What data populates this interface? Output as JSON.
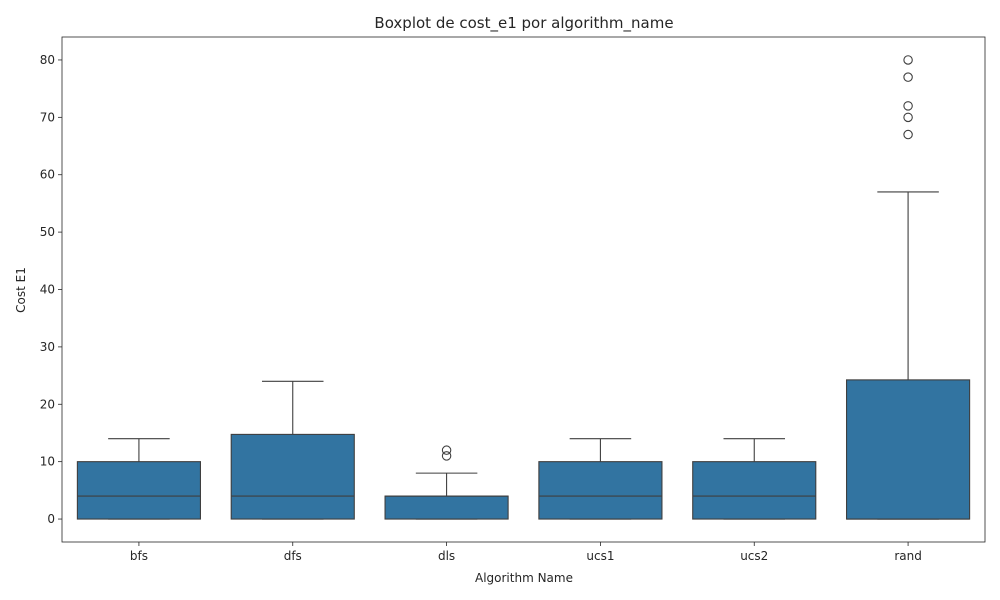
{
  "chart_data": {
    "type": "box",
    "title": "Boxplot de cost_e1 por algorithm_name",
    "xlabel": "Algorithm Name",
    "ylabel": "Cost E1",
    "ylim": [
      -4,
      84
    ],
    "yticks": [
      0,
      10,
      20,
      30,
      40,
      50,
      60,
      70,
      80
    ],
    "grid": false,
    "color": "#3274a1",
    "categories": [
      "bfs",
      "dfs",
      "dls",
      "ucs1",
      "ucs2",
      "rand"
    ],
    "boxes": [
      {
        "category": "bfs",
        "whisker_low": 0,
        "q1": 0,
        "median": 4,
        "q3": 10,
        "whisker_high": 14,
        "outliers": []
      },
      {
        "category": "dfs",
        "whisker_low": 0,
        "q1": 0,
        "median": 4,
        "q3": 14.75,
        "whisker_high": 24,
        "outliers": []
      },
      {
        "category": "dls",
        "whisker_low": 0,
        "q1": 0,
        "median": 4,
        "q3": 4,
        "whisker_high": 8,
        "outliers": [
          11,
          12
        ]
      },
      {
        "category": "ucs1",
        "whisker_low": 0,
        "q1": 0,
        "median": 4,
        "q3": 10,
        "whisker_high": 14,
        "outliers": []
      },
      {
        "category": "ucs2",
        "whisker_low": 0,
        "q1": 0,
        "median": 4,
        "q3": 10,
        "whisker_high": 14,
        "outliers": []
      },
      {
        "category": "rand",
        "whisker_low": 0,
        "q1": 0,
        "median": 0,
        "q3": 24.25,
        "whisker_high": 57,
        "outliers": [
          67,
          70,
          72,
          77,
          80
        ]
      }
    ]
  }
}
